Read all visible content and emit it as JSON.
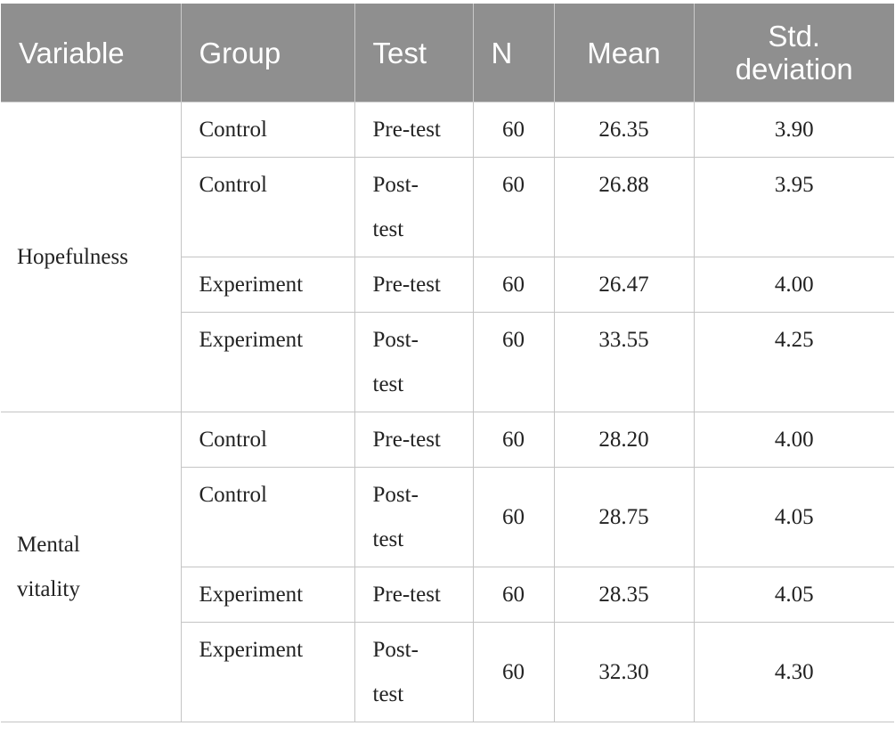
{
  "table": {
    "headers": {
      "variable": "Variable",
      "group": "Group",
      "test": "Test",
      "n": "N",
      "mean": "Mean",
      "std_line1": "Std.",
      "std_line2": "deviation"
    },
    "sections": [
      {
        "variable": "Hopefulness",
        "rows": [
          {
            "group": "Control",
            "test": "Pre-test",
            "n": "60",
            "mean": "26.35",
            "sd": "3.90"
          },
          {
            "group": "Control",
            "test": "Post-test",
            "n": "60",
            "mean": "26.88",
            "sd": "3.95"
          },
          {
            "group": "Experiment",
            "test": "Pre-test",
            "n": "60",
            "mean": "26.47",
            "sd": "4.00"
          },
          {
            "group": "Experiment",
            "test": "Post-test",
            "n": "60",
            "mean": "33.55",
            "sd": "4.25"
          }
        ]
      },
      {
        "variable": "Mental vitality",
        "rows": [
          {
            "group": "Control",
            "test": "Pre-test",
            "n": "60",
            "mean": "28.20",
            "sd": "4.00"
          },
          {
            "group": "Control",
            "test": "Post-test",
            "n": "60",
            "mean": "28.75",
            "sd": "4.05"
          },
          {
            "group": "Experiment",
            "test": "Pre-test",
            "n": "60",
            "mean": "28.35",
            "sd": "4.05"
          },
          {
            "group": "Experiment",
            "test": "Post-test",
            "n": "60",
            "mean": "32.30",
            "sd": "4.30"
          }
        ]
      }
    ]
  }
}
